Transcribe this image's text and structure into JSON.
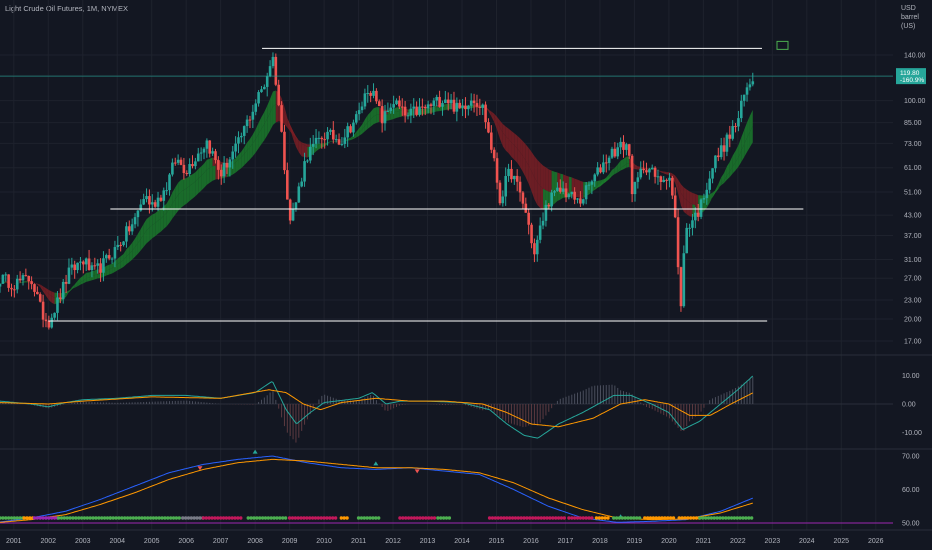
{
  "header": {
    "title": "Light Crude Oil Futures, 1M, NYMEX",
    "unit_line1": "USD",
    "unit_line2": "barrel (US)"
  },
  "colors": {
    "bg": "#131722",
    "up": "#26a69a",
    "down": "#ef5350",
    "ribbon_bull": "#1b7a2c",
    "ribbon_bear": "#7b1f25",
    "macd": "#26a69a",
    "signal": "#ff9800",
    "hline": "#ffffff",
    "price_line": "#26a69a"
  },
  "price_label": {
    "value": "119.80",
    "change": "-160.9%"
  },
  "chart_data": [
    {
      "type": "candlestick",
      "title": "Light Crude Oil Futures, 1M, NYMEX",
      "scale": "log",
      "y_unit": "USD / barrel (US)",
      "y_ticks": [
        17,
        20,
        23,
        27,
        31,
        37,
        43,
        51,
        61,
        73,
        85,
        100,
        120,
        140
      ],
      "x_ticks": [
        "2001",
        "2002",
        "2003",
        "2004",
        "2005",
        "2006",
        "2007",
        "2008",
        "2009",
        "2010",
        "2011",
        "2012",
        "2013",
        "2014",
        "2015",
        "2016",
        "2017",
        "2018",
        "2019",
        "2020",
        "2021",
        "2022",
        "2023",
        "2024",
        "2025",
        "2026"
      ],
      "x_range": [
        2000.6,
        2026.5
      ],
      "closes_anchor": [
        [
          2000.6,
          27
        ],
        [
          2001.0,
          26
        ],
        [
          2001.5,
          27
        ],
        [
          2001.8,
          21
        ],
        [
          2002.0,
          19.5
        ],
        [
          2002.3,
          23
        ],
        [
          2002.6,
          28
        ],
        [
          2003.0,
          31
        ],
        [
          2003.3,
          28
        ],
        [
          2003.6,
          30
        ],
        [
          2004.0,
          34
        ],
        [
          2004.5,
          41
        ],
        [
          2004.8,
          50
        ],
        [
          2005.0,
          46
        ],
        [
          2005.4,
          52
        ],
        [
          2005.7,
          65
        ],
        [
          2006.0,
          60
        ],
        [
          2006.6,
          74
        ],
        [
          2007.0,
          58
        ],
        [
          2007.5,
          72
        ],
        [
          2007.9,
          92
        ],
        [
          2008.3,
          115
        ],
        [
          2008.5,
          140
        ],
        [
          2008.8,
          70
        ],
        [
          2009.0,
          41
        ],
        [
          2009.2,
          48
        ],
        [
          2009.5,
          67
        ],
        [
          2010.0,
          78
        ],
        [
          2010.5,
          75
        ],
        [
          2011.0,
          90
        ],
        [
          2011.3,
          112
        ],
        [
          2011.7,
          86
        ],
        [
          2012.0,
          100
        ],
        [
          2012.4,
          88
        ],
        [
          2012.6,
          92
        ],
        [
          2013.0,
          95
        ],
        [
          2013.5,
          103
        ],
        [
          2013.9,
          93
        ],
        [
          2014.3,
          103
        ],
        [
          2014.6,
          95
        ],
        [
          2014.9,
          66
        ],
        [
          2015.1,
          48
        ],
        [
          2015.4,
          60
        ],
        [
          2015.8,
          46
        ],
        [
          2016.1,
          32
        ],
        [
          2016.5,
          48
        ],
        [
          2016.9,
          52
        ],
        [
          2017.4,
          47
        ],
        [
          2017.9,
          58
        ],
        [
          2018.3,
          68
        ],
        [
          2018.8,
          73
        ],
        [
          2018.95,
          50
        ],
        [
          2019.3,
          63
        ],
        [
          2019.7,
          55
        ],
        [
          2020.0,
          59
        ],
        [
          2020.2,
          40
        ],
        [
          2020.32,
          19.5
        ],
        [
          2020.5,
          39
        ],
        [
          2020.9,
          45
        ],
        [
          2021.3,
          63
        ],
        [
          2021.7,
          75
        ],
        [
          2022.0,
          86
        ],
        [
          2022.2,
          105
        ],
        [
          2022.45,
          119.8
        ]
      ],
      "levels": [
        {
          "price": 147,
          "x_from": 2008.2,
          "x_to": 2022.7
        },
        {
          "price": 45,
          "x_from": 2003.8,
          "x_to": 2023.9
        },
        {
          "price": 19.7,
          "x_from": 2002.0,
          "x_to": 2022.85
        }
      ],
      "ribbon": "multi-period EMA ribbon, green when rising, red when falling"
    },
    {
      "type": "line",
      "name": "MACD",
      "y_ticks": [
        10.0,
        0.0,
        -10.0
      ],
      "y_range": [
        -15,
        14
      ],
      "macd_anchor": [
        [
          2000.6,
          1
        ],
        [
          2001.5,
          0
        ],
        [
          2002.0,
          -1
        ],
        [
          2002.5,
          0.5
        ],
        [
          2003,
          1.5
        ],
        [
          2004,
          2
        ],
        [
          2005,
          3
        ],
        [
          2006,
          3
        ],
        [
          2007,
          2
        ],
        [
          2008.0,
          4
        ],
        [
          2008.5,
          8
        ],
        [
          2008.9,
          -2
        ],
        [
          2009.2,
          -7
        ],
        [
          2009.6,
          -3
        ],
        [
          2010,
          0.5
        ],
        [
          2011,
          2
        ],
        [
          2011.4,
          4
        ],
        [
          2011.8,
          0
        ],
        [
          2012.2,
          1
        ],
        [
          2013,
          1
        ],
        [
          2014,
          0.5
        ],
        [
          2014.8,
          -2
        ],
        [
          2015.3,
          -7
        ],
        [
          2015.8,
          -11
        ],
        [
          2016.2,
          -12
        ],
        [
          2016.8,
          -7
        ],
        [
          2017.5,
          -3
        ],
        [
          2018.4,
          3
        ],
        [
          2018.9,
          3
        ],
        [
          2019.5,
          0
        ],
        [
          2020.0,
          -3
        ],
        [
          2020.4,
          -9
        ],
        [
          2020.9,
          -6
        ],
        [
          2021.4,
          -1
        ],
        [
          2022.0,
          5
        ],
        [
          2022.45,
          10
        ]
      ],
      "signal_anchor": [
        [
          2000.6,
          0.5
        ],
        [
          2002.0,
          0
        ],
        [
          2003,
          1
        ],
        [
          2005,
          2.5
        ],
        [
          2007,
          2
        ],
        [
          2008.4,
          5
        ],
        [
          2008.9,
          4
        ],
        [
          2009.4,
          0
        ],
        [
          2009.9,
          -2
        ],
        [
          2010.5,
          0.5
        ],
        [
          2011.5,
          2
        ],
        [
          2012.5,
          1
        ],
        [
          2013.5,
          1
        ],
        [
          2014.6,
          0
        ],
        [
          2015.3,
          -3
        ],
        [
          2016.0,
          -7
        ],
        [
          2016.8,
          -8
        ],
        [
          2017.8,
          -5
        ],
        [
          2018.6,
          0
        ],
        [
          2019.3,
          1.5
        ],
        [
          2020.0,
          0
        ],
        [
          2020.6,
          -4
        ],
        [
          2021.2,
          -4
        ],
        [
          2021.8,
          0
        ],
        [
          2022.45,
          4
        ]
      ]
    },
    {
      "type": "line",
      "name": "Oscillator",
      "y_ticks": [
        70.0,
        60.0,
        50.0
      ],
      "y_range": [
        50,
        71
      ],
      "fast_anchor": [
        [
          2000.6,
          50.3
        ],
        [
          2001.5,
          51.5
        ],
        [
          2002.5,
          53.5
        ],
        [
          2003.5,
          57
        ],
        [
          2004.5,
          61
        ],
        [
          2005.5,
          65
        ],
        [
          2006.5,
          67.5
        ],
        [
          2007.5,
          69
        ],
        [
          2008.5,
          70
        ],
        [
          2009.5,
          68
        ],
        [
          2010.5,
          66.5
        ],
        [
          2011.5,
          66
        ],
        [
          2012.5,
          66.5
        ],
        [
          2013.5,
          65.5
        ],
        [
          2014.5,
          64.5
        ],
        [
          2015.5,
          60
        ],
        [
          2016.5,
          55
        ],
        [
          2017.5,
          51.5
        ],
        [
          2018.5,
          50.2
        ],
        [
          2019.5,
          50.5
        ],
        [
          2020.5,
          51
        ],
        [
          2021.5,
          53.5
        ],
        [
          2022.45,
          57.5
        ]
      ],
      "slow_anchor": [
        [
          2000.6,
          50.2
        ],
        [
          2001.5,
          51
        ],
        [
          2002.5,
          52.5
        ],
        [
          2003.5,
          55.5
        ],
        [
          2004.5,
          59
        ],
        [
          2005.5,
          63
        ],
        [
          2006.5,
          66
        ],
        [
          2007.5,
          68
        ],
        [
          2008.5,
          69
        ],
        [
          2009.5,
          68.5
        ],
        [
          2010.5,
          67.5
        ],
        [
          2011.5,
          66.5
        ],
        [
          2012.5,
          66.5
        ],
        [
          2013.5,
          66
        ],
        [
          2014.5,
          65
        ],
        [
          2015.5,
          62
        ],
        [
          2016.5,
          57.5
        ],
        [
          2017.5,
          54
        ],
        [
          2018.5,
          51.5
        ],
        [
          2019.5,
          51
        ],
        [
          2020.5,
          51.2
        ],
        [
          2021.5,
          53
        ],
        [
          2022.45,
          56
        ]
      ],
      "markers": [
        {
          "x": 2006.4,
          "kind": "down",
          "color": "#ef5350"
        },
        {
          "x": 2008.0,
          "kind": "up",
          "color": "#26a69a"
        },
        {
          "x": 2011.5,
          "kind": "up",
          "color": "#26a69a"
        },
        {
          "x": 2012.7,
          "kind": "down",
          "color": "#ef5350"
        },
        {
          "x": 2018.6,
          "kind": "up",
          "color": "#26a69a"
        }
      ],
      "state_dots": [
        [
          2000.6,
          2001.3,
          "#4caf50"
        ],
        [
          2001.3,
          2001.6,
          "#ff9800"
        ],
        [
          2001.6,
          2002.3,
          "#9c27b0"
        ],
        [
          2002.3,
          2003.8,
          "#4caf50"
        ],
        [
          2003.8,
          2005.8,
          "#4caf50"
        ],
        [
          2005.9,
          2006.5,
          "#787b86"
        ],
        [
          2006.5,
          2007.6,
          "#c2185b"
        ],
        [
          2007.8,
          2008.9,
          "#4caf50"
        ],
        [
          2009.0,
          2010.4,
          "#c2185b"
        ],
        [
          2010.5,
          2010.7,
          "#ff9800"
        ],
        [
          2011.0,
          2011.6,
          "#4caf50"
        ],
        [
          2012.2,
          2013.2,
          "#c2185b"
        ],
        [
          2013.3,
          2013.7,
          "#4caf50"
        ],
        [
          2014.8,
          2017.0,
          "#c2185b"
        ],
        [
          2017.1,
          2017.8,
          "#c2185b"
        ],
        [
          2017.9,
          2018.3,
          "#ff9800"
        ],
        [
          2018.4,
          2019.2,
          "#4caf50"
        ],
        [
          2019.3,
          2020.2,
          "#ff9800"
        ],
        [
          2020.3,
          2020.9,
          "#ff9800"
        ],
        [
          2020.9,
          2022.45,
          "#4caf50"
        ]
      ]
    }
  ]
}
